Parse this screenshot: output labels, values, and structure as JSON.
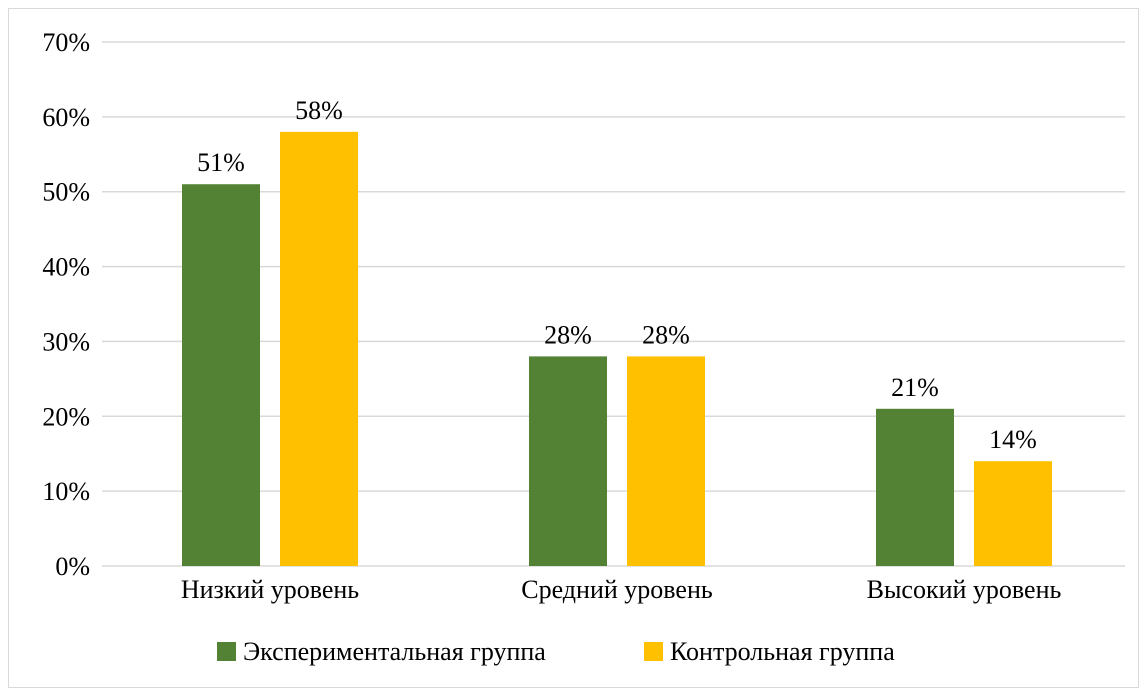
{
  "chart_data": {
    "type": "bar",
    "title": "",
    "xlabel": "",
    "ylabel": "",
    "categories": [
      "Низкий уровень",
      "Средний уровень",
      "Высокий уровень"
    ],
    "series": [
      {
        "name": "Экспериментальная группа",
        "color": "#548235",
        "values": [
          51,
          28,
          21
        ],
        "labels": [
          "51%",
          "28%",
          "21%"
        ]
      },
      {
        "name": "Контрольная группа",
        "color": "#FFC000",
        "values": [
          58,
          28,
          14
        ],
        "labels": [
          "58%",
          "28%",
          "14%"
        ]
      }
    ],
    "ylim": [
      0,
      70
    ],
    "ytick_values": [
      0,
      10,
      20,
      30,
      40,
      50,
      60,
      70
    ],
    "ytick_labels": [
      "0%",
      "10%",
      "20%",
      "30%",
      "40%",
      "50%",
      "60%",
      "70%"
    ],
    "grid": true,
    "gridline_color": "#d9d9d9",
    "legend_position": "bottom"
  }
}
